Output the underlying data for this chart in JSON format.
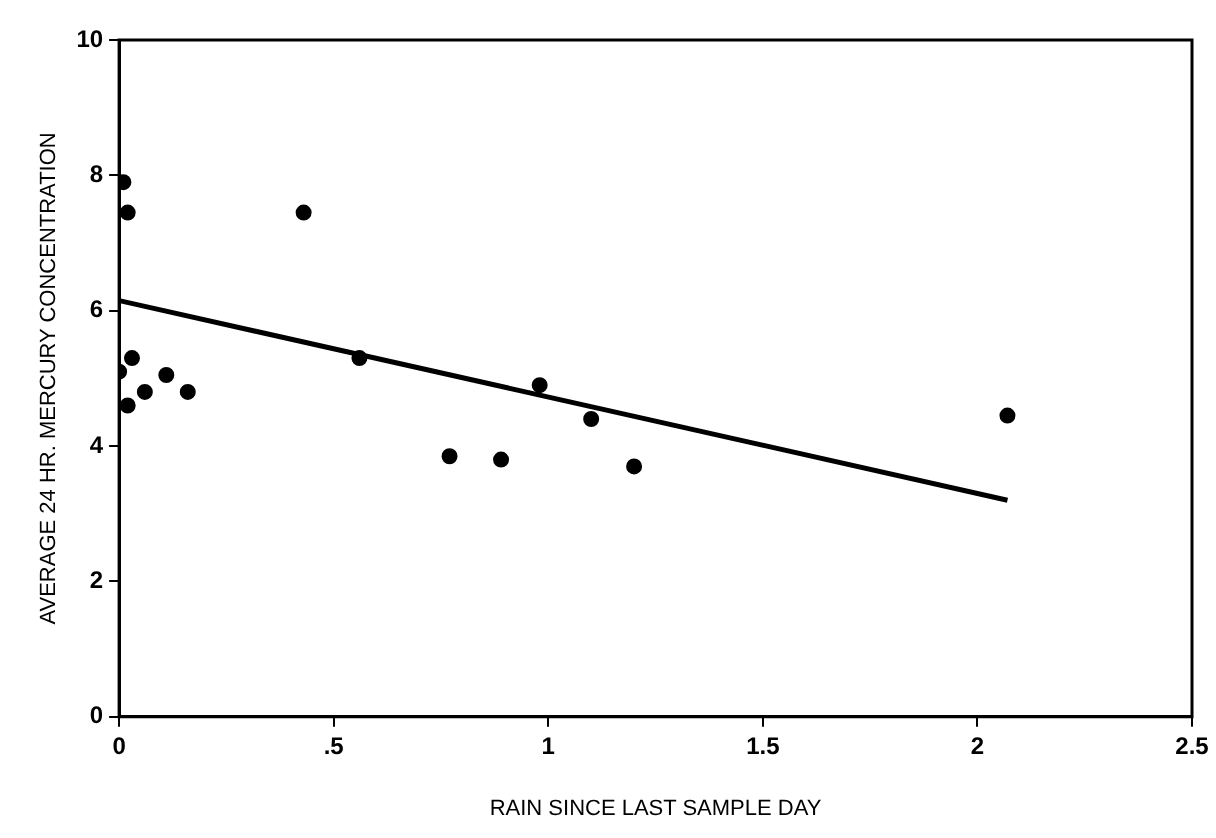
{
  "chart_data": {
    "type": "scatter",
    "xlabel": "RAIN SINCE LAST SAMPLE DAY",
    "ylabel": "AVERAGE 24 HR. MERCURY CONCENTRATION",
    "xlim": [
      0,
      2.5
    ],
    "xticks": [
      0,
      {
        "value": 0.5,
        "label": ".5"
      },
      1,
      1.5,
      2,
      2.5
    ],
    "ylim": [
      0,
      10
    ],
    "yticks": [
      0,
      2,
      4,
      6,
      8,
      10
    ],
    "grid": false,
    "legend": false,
    "marker": "circle",
    "series": [
      {
        "type": "scatter",
        "color": "#000000",
        "x": [
          0.01,
          0.02,
          0.0,
          0.03,
          0.02,
          0.06,
          0.11,
          0.16,
          0.43,
          0.56,
          0.77,
          0.89,
          0.98,
          1.1,
          1.2,
          2.07
        ],
        "values": [
          7.9,
          7.45,
          5.1,
          5.3,
          4.6,
          4.8,
          5.05,
          4.8,
          7.45,
          5.3,
          3.85,
          3.8,
          4.9,
          4.4,
          3.7,
          4.45
        ]
      },
      {
        "type": "line",
        "color": "#000000",
        "x": [
          0,
          2.07
        ],
        "values": [
          6.15,
          3.2
        ],
        "marker": "none",
        "line_style": "solid"
      }
    ]
  }
}
